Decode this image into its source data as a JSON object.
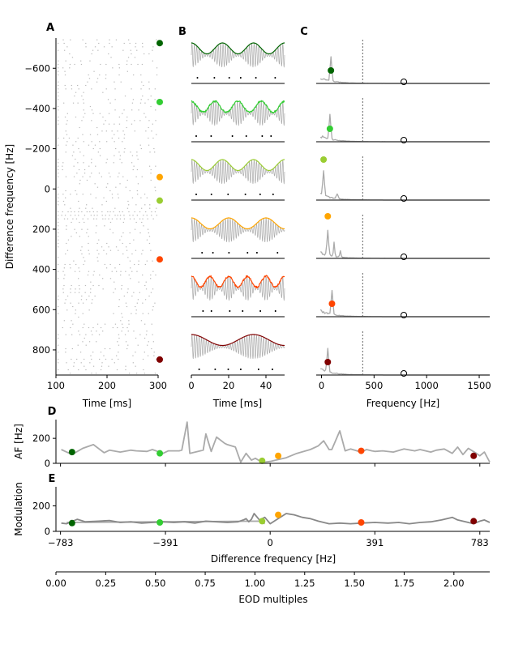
{
  "chart_data": [
    {
      "panel": "A",
      "type": "scatter",
      "xlabel": "Time [ms]",
      "ylabel": "Difference frequency [Hz]",
      "xlim": [
        100,
        300
      ],
      "ylim": [
        925,
        -750
      ],
      "x_ticks": [
        "100",
        "200",
        "300"
      ],
      "y_ticks": [
        "−600",
        "−400",
        "−200",
        "0",
        "200",
        "400",
        "600",
        "800"
      ],
      "marker_df": [
        -725,
        -432,
        58,
        -59,
        350,
        848
      ],
      "marker_colors": [
        "#006400",
        "#32cd32",
        "#9acd32",
        "#ffa500",
        "#ff4500",
        "#800000"
      ]
    },
    {
      "panel": "B",
      "type": "line",
      "xlabel": "Time [ms]",
      "x_ticks": [
        "0",
        "20",
        "40"
      ],
      "xlim": [
        0,
        50
      ],
      "rows": [
        {
          "color": "#006400",
          "envelope_freq_hz": 60
        },
        {
          "color": "#32cd32",
          "envelope_freq_hz": 80
        },
        {
          "color": "#9acd32",
          "envelope_freq_hz": 60
        },
        {
          "color": "#ffa500",
          "envelope_freq_hz": 50
        },
        {
          "color": "#ff4500",
          "envelope_freq_hz": 100
        },
        {
          "color": "#800000",
          "envelope_freq_hz": 30
        }
      ]
    },
    {
      "panel": "C",
      "type": "line",
      "xlabel": "Frequency [Hz]",
      "x_ticks": [
        "0",
        "500",
        "1000",
        "1500"
      ],
      "xlim": [
        -50,
        1600
      ],
      "eod_line_hz": 391,
      "eod_marker_hz": 783,
      "rows": [
        {
          "color": "#006400",
          "peak_hz": 90
        },
        {
          "color": "#32cd32",
          "peak_hz": 80
        },
        {
          "color": "#9acd32",
          "peak_hz": 20
        },
        {
          "color": "#ffa500",
          "peak_hz": 60
        },
        {
          "color": "#ff4500",
          "peak_hz": 100
        },
        {
          "color": "#800000",
          "peak_hz": 60
        }
      ]
    },
    {
      "panel": "D",
      "type": "line",
      "ylabel": "AF [Hz]",
      "y_ticks": [
        "0",
        "200"
      ],
      "ylim": [
        0,
        350
      ],
      "xlim": [
        -800,
        820
      ],
      "series": [
        {
          "color": "#aaaaaa",
          "x": [
            -780,
            -760,
            -740,
            -700,
            -660,
            -620,
            -600,
            -560,
            -520,
            -500,
            -460,
            -440,
            -400,
            -380,
            -340,
            -330,
            -310,
            -300,
            -250,
            -240,
            -220,
            -200,
            -170,
            -160,
            -130,
            -110,
            -90,
            -70,
            -55,
            -40,
            -20,
            0,
            20,
            60,
            100,
            150,
            180,
            200,
            220,
            230,
            260,
            280,
            300,
            340,
            360,
            380,
            391,
            420,
            460,
            500,
            540,
            560,
            600,
            620,
            650,
            680,
            700,
            720,
            740,
            770,
            783,
            800,
            820
          ],
          "y": [
            110,
            90,
            70,
            120,
            150,
            85,
            105,
            90,
            105,
            100,
            95,
            110,
            80,
            100,
            100,
            105,
            330,
            80,
            105,
            235,
            95,
            210,
            160,
            150,
            130,
            10,
            80,
            25,
            40,
            20,
            10,
            15,
            25,
            45,
            80,
            110,
            140,
            180,
            110,
            110,
            260,
            100,
            115,
            90,
            110,
            100,
            95,
            100,
            90,
            115,
            100,
            110,
            90,
            105,
            115,
            80,
            130,
            70,
            120,
            80,
            60,
            90,
            10
          ]
        }
      ],
      "markers": [
        {
          "x": -740,
          "y": 90,
          "color": "#006400"
        },
        {
          "x": -412,
          "y": 80,
          "color": "#32cd32"
        },
        {
          "x": -30,
          "y": 20,
          "color": "#9acd32"
        },
        {
          "x": 30,
          "y": 60,
          "color": "#ffa500"
        },
        {
          "x": 340,
          "y": 100,
          "color": "#ff4500"
        },
        {
          "x": 760,
          "y": 60,
          "color": "#800000"
        }
      ]
    },
    {
      "panel": "E",
      "type": "line",
      "xlabel": "Difference frequency [Hz]",
      "ylabel": "Modulation",
      "x_ticks": [
        "−783",
        "−391",
        "0",
        "391",
        "783"
      ],
      "y_ticks": [
        "0",
        "200"
      ],
      "ylim": [
        0,
        350
      ],
      "xlim": [
        -800,
        820
      ],
      "series": [
        {
          "color": "#aaaaaa",
          "x": [
            -760,
            -40,
            -20
          ],
          "y": [
            70,
            80,
            60
          ]
        },
        {
          "color": "#888888",
          "x": [
            -780,
            -760,
            -720,
            -690,
            -640,
            -600,
            -560,
            -520,
            -480,
            -440,
            -400,
            -360,
            -320,
            -280,
            -240,
            -200,
            -160,
            -120,
            -100,
            -90,
            -80,
            -70,
            -60,
            -40,
            -20,
            0,
            30,
            60,
            90,
            120,
            150,
            180,
            220,
            260,
            300,
            340,
            391,
            440,
            480,
            520,
            560,
            600,
            640,
            680,
            700,
            740,
            760,
            783,
            800,
            820
          ],
          "y": [
            65,
            60,
            95,
            75,
            80,
            85,
            70,
            75,
            65,
            70,
            75,
            70,
            75,
            65,
            80,
            75,
            70,
            75,
            90,
            100,
            75,
            95,
            140,
            90,
            110,
            60,
            100,
            140,
            130,
            110,
            100,
            80,
            60,
            65,
            60,
            65,
            70,
            65,
            70,
            60,
            70,
            75,
            90,
            110,
            90,
            70,
            60,
            80,
            90,
            70
          ]
        }
      ],
      "markers": [
        {
          "x": -740,
          "y": 65,
          "color": "#006400"
        },
        {
          "x": -412,
          "y": 70,
          "color": "#32cd32"
        },
        {
          "x": -30,
          "y": 80,
          "color": "#9acd32"
        },
        {
          "x": 30,
          "y": 130,
          "color": "#ffa500"
        },
        {
          "x": 340,
          "y": 70,
          "color": "#ff4500"
        },
        {
          "x": 760,
          "y": 80,
          "color": "#800000"
        }
      ]
    },
    {
      "panel": "bottom-axis",
      "type": "line",
      "xlabel": "EOD multiples",
      "x_ticks": [
        "0.00",
        "0.25",
        "0.50",
        "0.75",
        "1.00",
        "1.25",
        "1.50",
        "1.75",
        "2.00"
      ],
      "xlim": [
        0,
        2.18
      ]
    }
  ]
}
